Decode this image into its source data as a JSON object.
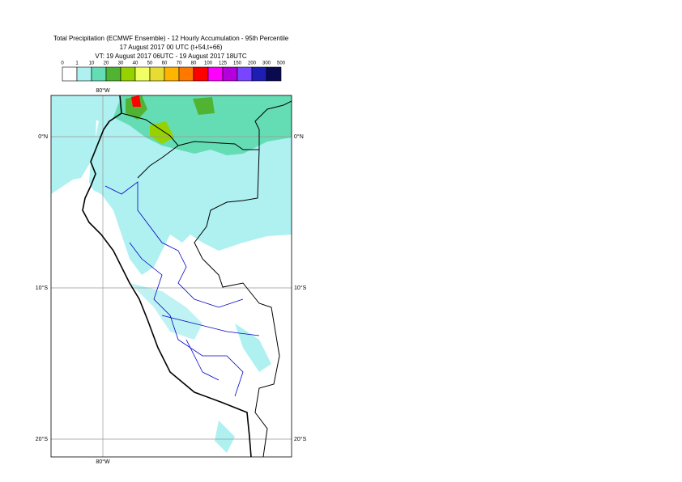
{
  "header": {
    "lines": [
      "Total Precipitation (ECMWF Ensemble) - 12 Hourly Accumulation - 95th Percentile",
      "17 August 2017 00 UTC (t+54,t+66)",
      "VT: 19 August 2017 06UTC - 19 August 2017 18UTC"
    ]
  },
  "legend": {
    "labels": [
      "0",
      "1",
      "10",
      "20",
      "30",
      "40",
      "50",
      "60",
      "70",
      "80",
      "100",
      "125",
      "150",
      "200",
      "300",
      "500"
    ],
    "colors": [
      "#ffffff",
      "#aff0f0",
      "#64dcb4",
      "#50b432",
      "#96d200",
      "#f0ff64",
      "#e6dc32",
      "#ffb400",
      "#ff7800",
      "#ff0000",
      "#ff00ff",
      "#b400dc",
      "#7846ff",
      "#1e1eb4",
      "#0a0a50"
    ]
  },
  "map": {
    "labels": [
      "80°W",
      "0°N",
      "10°S",
      "20°S"
    ]
  }
}
